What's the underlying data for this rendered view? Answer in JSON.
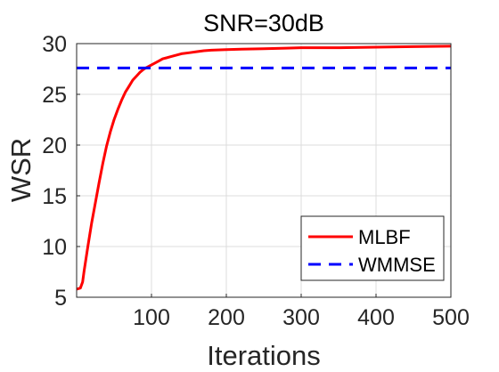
{
  "chart_data": {
    "type": "line",
    "title": "SNR=30dB",
    "xlabel": "Iterations",
    "ylabel": "WSR",
    "xlim": [
      0,
      500
    ],
    "ylim": [
      5,
      30
    ],
    "xticks": [
      100,
      200,
      300,
      400,
      500
    ],
    "yticks": [
      5,
      10,
      15,
      20,
      25,
      30
    ],
    "grid": true,
    "legend_position": "bottom-right",
    "series": [
      {
        "name": "MLBF",
        "color": "#ff0000",
        "style": "solid",
        "x": [
          0,
          5,
          8,
          10,
          15,
          20,
          25,
          30,
          35,
          40,
          45,
          50,
          55,
          60,
          65,
          70,
          75,
          80,
          85,
          90,
          95,
          100,
          105,
          110,
          115,
          120,
          125,
          130,
          140,
          150,
          160,
          170,
          180,
          200,
          220,
          250,
          280,
          300,
          350,
          400,
          450,
          500
        ],
        "y": [
          5.8,
          5.9,
          6.5,
          7.6,
          10.0,
          12.3,
          14.3,
          16.3,
          18.2,
          19.9,
          21.3,
          22.5,
          23.5,
          24.4,
          25.2,
          25.8,
          26.4,
          26.8,
          27.2,
          27.5,
          27.7,
          27.9,
          28.1,
          28.3,
          28.5,
          28.6,
          28.7,
          28.8,
          29.0,
          29.1,
          29.2,
          29.3,
          29.35,
          29.4,
          29.45,
          29.5,
          29.55,
          29.6,
          29.6,
          29.65,
          29.7,
          29.75
        ]
      },
      {
        "name": "WMMSE",
        "color": "#0000ff",
        "style": "dashed",
        "x": [
          0,
          500
        ],
        "y": [
          27.6,
          27.6
        ]
      }
    ]
  }
}
